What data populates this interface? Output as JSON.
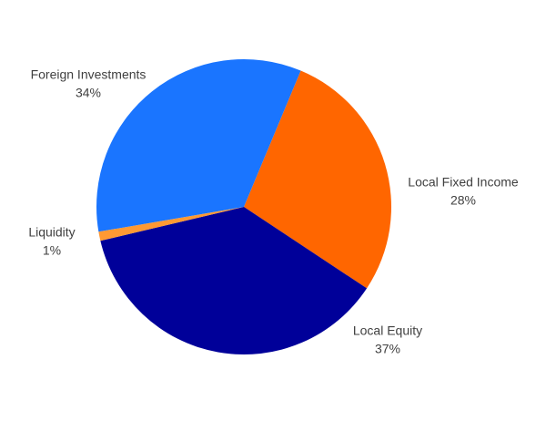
{
  "chart_data": {
    "type": "pie",
    "categories": [
      "Local Fixed Income",
      "Local Equity",
      "Liquidity",
      "Foreign Investments"
    ],
    "values": [
      28,
      37,
      1,
      34
    ],
    "value_labels": [
      "28%",
      "37%",
      "1%",
      "34%"
    ],
    "colors": [
      "#ff6600",
      "#000099",
      "#ff9933",
      "#1a75ff"
    ]
  }
}
